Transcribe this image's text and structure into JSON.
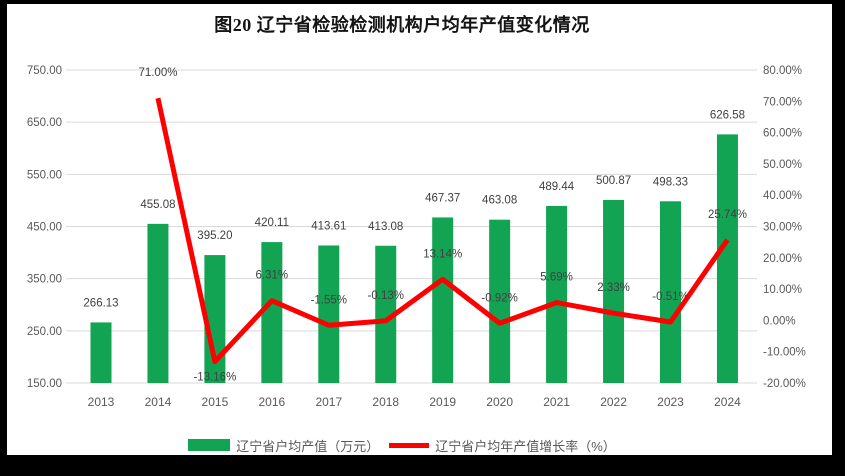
{
  "title": "图20 辽宁省检验检测机构户均年产值变化情况",
  "colors": {
    "bar": "#12A452",
    "line": "#FE0000",
    "grid": "#D9D9D9",
    "axis_text": "#595959",
    "data_label": "#404040",
    "title_text": "#141414",
    "frame": "#000000",
    "panel": "#FFFFFF"
  },
  "chart_data": {
    "type": "combo-bar-line",
    "title": "图20 辽宁省检验检测机构户均年产值变化情况",
    "categories": [
      "2013",
      "2014",
      "2015",
      "2016",
      "2017",
      "2018",
      "2019",
      "2020",
      "2021",
      "2022",
      "2023",
      "2024"
    ],
    "series": [
      {
        "name": "辽宁省户均产值（万元）",
        "type": "bar",
        "axis": "left",
        "values": [
          266.13,
          455.08,
          395.2,
          420.11,
          413.61,
          413.08,
          467.37,
          463.08,
          489.44,
          500.87,
          498.33,
          626.58
        ]
      },
      {
        "name": "辽宁省户均年产值增长率（%）",
        "type": "line",
        "axis": "right",
        "values": [
          null,
          71.0,
          -13.16,
          6.31,
          -1.55,
          -0.13,
          13.14,
          -0.92,
          5.69,
          2.33,
          -0.51,
          25.74
        ],
        "label_side": [
          null,
          "above",
          "below",
          "above",
          "above",
          "above",
          "above",
          "above",
          "above",
          "above",
          "above",
          "above"
        ]
      }
    ],
    "left_axis": {
      "min": 150,
      "max": 750,
      "step": 100,
      "format": "0.00"
    },
    "right_axis": {
      "min": -20,
      "max": 80,
      "step": 10,
      "format": "0.00%"
    },
    "gridlines": "horizontal",
    "legend_position": "bottom"
  }
}
